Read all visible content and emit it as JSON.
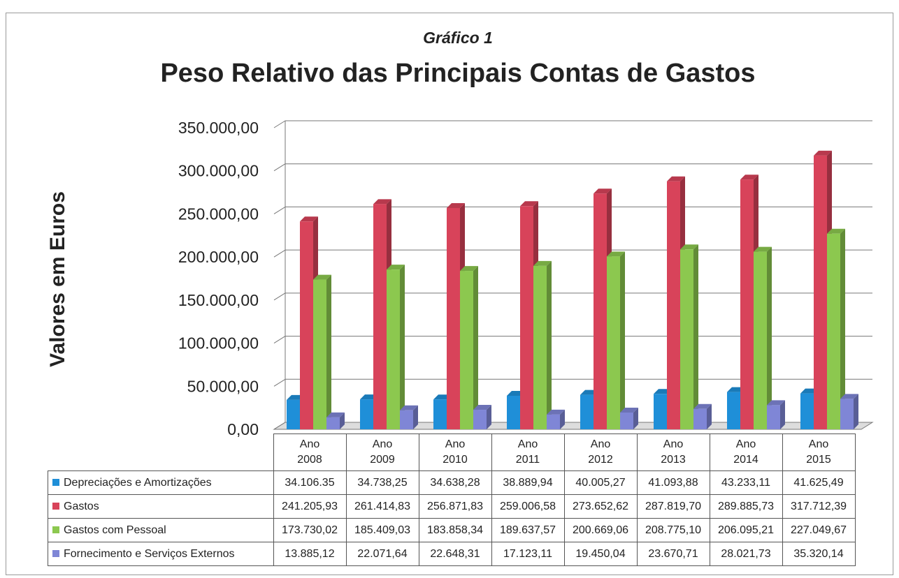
{
  "chart_data": {
    "type": "bar3d",
    "subtitle": "Gráfico 1",
    "title": "Peso Relativo das Principais Contas de Gastos",
    "y_label": "Valores em Euros",
    "categories": [
      "Ano 2008",
      "Ano 2009",
      "Ano 2010",
      "Ano 2011",
      "Ano 2012",
      "Ano 2013",
      "Ano 2014",
      "Ano 2015"
    ],
    "ylim": [
      0,
      350000
    ],
    "yticks": [
      {
        "value": 0,
        "label": "0,00"
      },
      {
        "value": 50000,
        "label": "50.000,00"
      },
      {
        "value": 100000,
        "label": "100.000,00"
      },
      {
        "value": 150000,
        "label": "150.000,00"
      },
      {
        "value": 200000,
        "label": "200.000,00"
      },
      {
        "value": 250000,
        "label": "250.000,00"
      },
      {
        "value": 300000,
        "label": "300.000,00"
      },
      {
        "value": 350000,
        "label": "350.000,00"
      }
    ],
    "grid": true,
    "series": [
      {
        "name": "Depreciações e Amortizações",
        "color": "#1f8fd8",
        "values": [
          34106.35,
          34738.25,
          34638.28,
          38889.94,
          40005.27,
          41093.88,
          43233.11,
          41625.49
        ],
        "value_labels": [
          "34.106.35",
          "34.738,25",
          "34.638,28",
          "38.889,94",
          "40.005,27",
          "41.093,88",
          "43.233,11",
          "41.625,49"
        ]
      },
      {
        "name": "Gastos",
        "color": "#d8435a",
        "values": [
          241205.93,
          261414.83,
          256871.83,
          259006.58,
          273652.62,
          287819.7,
          289885.73,
          317712.39
        ],
        "value_labels": [
          "241.205,93",
          "261.414,83",
          "256.871,83",
          "259.006,58",
          "273.652,62",
          "287.819,70",
          "289.885,73",
          "317.712,39"
        ]
      },
      {
        "name": "Gastos com Pessoal",
        "color": "#8cc84f",
        "values": [
          173730.02,
          185409.03,
          183858.34,
          189637.57,
          200669.06,
          208775.1,
          206095.21,
          227049.67
        ],
        "value_labels": [
          "173.730,02",
          "185.409,03",
          "183.858,34",
          "189.637,57",
          "200.669,06",
          "208.775,10",
          "206.095,21",
          "227.049,67"
        ]
      },
      {
        "name": "Fornecimento e Serviços Externos",
        "color": "#7f86d6",
        "values": [
          13885.12,
          22071.64,
          22648.31,
          17123.11,
          19450.04,
          23670.71,
          28021.73,
          35320.14
        ],
        "value_labels": [
          "13.885,12",
          "22.071,64",
          "22.648,31",
          "17.123,11",
          "19.450,04",
          "23.670,71",
          "28.021,73",
          "35.320,14"
        ]
      }
    ]
  }
}
